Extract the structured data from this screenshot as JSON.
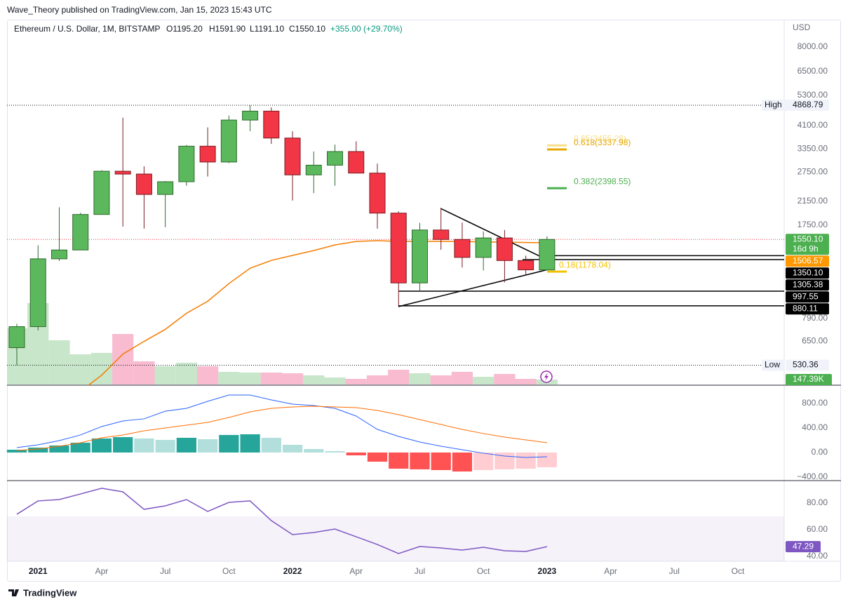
{
  "header": "Wave_Theory published on TradingView.com, Jan 15, 2023 15:43 UTC",
  "footer": "TradingView",
  "chart_data": {
    "type": "candlestick",
    "legend": {
      "symbol": "Ethereum / U.S. Dollar, 1M, BITSTAMP",
      "open": "O1195.20",
      "high": "H1591.90",
      "low": "L1191.10",
      "close": "C1550.10",
      "change": "+355.00 (+29.70%)"
    },
    "currency": "USD",
    "x": [
      "2020-12",
      "2021-01",
      "2021-02",
      "2021-03",
      "2021-04",
      "2021-05",
      "2021-06",
      "2021-07",
      "2021-08",
      "2021-09",
      "2021-10",
      "2021-11",
      "2021-12",
      "2022-01",
      "2022-02",
      "2022-03",
      "2022-04",
      "2022-05",
      "2022-06",
      "2022-07",
      "2022-08",
      "2022-09",
      "2022-10",
      "2022-11",
      "2022-12",
      "2023-01"
    ],
    "xlim": [
      "2020-12",
      "2023-10"
    ],
    "xticks": [
      {
        "value": "2021-01",
        "label": "2021"
      },
      {
        "value": "2021-04",
        "label": "Apr"
      },
      {
        "value": "2021-07",
        "label": "Jul"
      },
      {
        "value": "2021-10",
        "label": "Oct"
      },
      {
        "value": "2022-01",
        "label": "2022"
      },
      {
        "value": "2022-04",
        "label": "Apr"
      },
      {
        "value": "2022-07",
        "label": "Jul"
      },
      {
        "value": "2022-10",
        "label": "Oct"
      },
      {
        "value": "2023-01",
        "label": "2023"
      },
      {
        "value": "2023-04",
        "label": "Apr"
      },
      {
        "value": "2023-07",
        "label": "Jul"
      },
      {
        "value": "2023-10",
        "label": "Oct"
      }
    ],
    "candles": {
      "up_color": "#5cb85c",
      "down_color": "#f23645",
      "open": [
        616,
        737,
        1314,
        1417,
        1918,
        2773,
        2707,
        2275,
        2536,
        3433,
        3000,
        4290,
        4630,
        3680,
        2688,
        2920,
        3280,
        2729,
        1940,
        1070,
        1680,
        1550,
        1330,
        1570,
        1295,
        1195.2
      ],
      "high": [
        755,
        1475,
        2040,
        1945,
        2796,
        4380,
        2890,
        2550,
        3470,
        4030,
        4460,
        4868.79,
        4780,
        3900,
        3280,
        3480,
        3580,
        2960,
        1970,
        1785,
        2030,
        1790,
        1660,
        1680,
        1350,
        1591.9
      ],
      "low": [
        530.36,
        714,
        1290,
        1440,
        1920,
        1730,
        1700,
        1720,
        2450,
        2650,
        2970,
        3900,
        3500,
        2160,
        2300,
        2450,
        2790,
        1700,
        880.11,
        997.55,
        1420,
        1220,
        1190,
        1075,
        1150,
        1191.1
      ],
      "close": [
        737,
        1314,
        1417,
        1918,
        2773,
        2707,
        2275,
        2536,
        3433,
        3000,
        4290,
        4630,
        3680,
        2688,
        2920,
        3280,
        2729,
        1940,
        1070,
        1680,
        1550,
        1330,
        1570,
        1295,
        1196,
        1550.1
      ]
    },
    "ma": {
      "color": "#f57c00",
      "values": [
        null,
        null,
        null,
        425,
        487,
        583,
        650,
        720,
        826,
        915,
        1064,
        1213,
        1296,
        1353,
        1410,
        1479,
        1524,
        1534,
        1524,
        1524,
        1524,
        1524,
        1518,
        1515,
        1510,
        1506.57
      ]
    },
    "volume": {
      "up_color": "#c8e6c9",
      "down_color": "#f8bbd0",
      "ylim": [
        0,
        10920
      ],
      "values": [
        1680,
        2436,
        1323,
        903,
        945,
        1512,
        693,
        546,
        651,
        546,
        378,
        357,
        357,
        336,
        273,
        210,
        168,
        273,
        441,
        336,
        273,
        378,
        231,
        315,
        168,
        147.39
      ],
      "last_label": "147.39K"
    },
    "log_scale": true,
    "ylim": [
      450,
      10100
    ],
    "yticks": [
      {
        "value": 8000,
        "label": "8000.00"
      },
      {
        "value": 6500,
        "label": "6500.00"
      },
      {
        "value": 5300,
        "label": "5300.00"
      },
      {
        "value": 4100,
        "label": "4100.00"
      },
      {
        "value": 3350,
        "label": "3350.00"
      },
      {
        "value": 2750,
        "label": "2750.00"
      },
      {
        "value": 2150,
        "label": "2150.00"
      },
      {
        "value": 1750,
        "label": "1750.00"
      },
      {
        "value": 790,
        "label": "790.00"
      },
      {
        "value": 650,
        "label": "650.00"
      }
    ],
    "high_mark": {
      "name": "High",
      "value": 4868.79,
      "label": "4868.79"
    },
    "low_mark": {
      "name": "Low",
      "value": 530.36,
      "label": "530.36"
    },
    "fibs": [
      {
        "value": 3455.28,
        "label": "0.65(3455.28)",
        "color": "#f7e08a"
      },
      {
        "value": 3337.98,
        "label": "0.618(3337.98)",
        "color": "#e6a700"
      },
      {
        "value": 2398.55,
        "label": "0.382(2398.55)",
        "color": "#4caf50"
      },
      {
        "value": 1178.04,
        "label": "0.18(1178.04)",
        "color": "#f2c200"
      }
    ],
    "tags": [
      {
        "value": 1550.1,
        "label": "1550.10",
        "sub": "16d 9h",
        "color": "#4caf50"
      },
      {
        "value": 1506.57,
        "label": "1506.57",
        "color": "#ff9800"
      },
      {
        "value": 1350.1,
        "label": "1350.10",
        "color": "#000000"
      },
      {
        "value": 1305.38,
        "label": "1305.38",
        "color": "#000000"
      },
      {
        "value": 997.55,
        "label": "997.55",
        "color": "#000000"
      },
      {
        "value": 880.11,
        "label": "880.11",
        "color": "#000000"
      }
    ],
    "macd": {
      "ylim": [
        -446,
        1017
      ],
      "yticks": [
        {
          "value": 800,
          "label": "800.00"
        },
        {
          "value": 400,
          "label": "400.00"
        },
        {
          "value": 0,
          "label": "0.00"
        },
        {
          "value": -400,
          "label": "−400.00"
        }
      ],
      "histogram": [
        46,
        80,
        114,
        160,
        229,
        251,
        229,
        206,
        240,
        217,
        286,
        297,
        240,
        126,
        57,
        23,
        -46,
        -149,
        -263,
        -274,
        -286,
        -309,
        -286,
        -274,
        -263,
        -240
      ],
      "colors": {
        "up_rising": "#26a69a",
        "up_falling": "#b2dfdb",
        "down_falling": "#ff5252",
        "down_rising": "#ffcdd2"
      },
      "macd": {
        "color": "#2962ff",
        "values": [
          80,
          126,
          194,
          286,
          423,
          514,
          549,
          674,
          720,
          834,
          937,
          937,
          857,
          789,
          766,
          720,
          594,
          377,
          263,
          171,
          103,
          46,
          -11,
          -57,
          -80,
          -69
        ]
      },
      "signal": {
        "color": "#ff6d00",
        "values": [
          34,
          57,
          103,
          160,
          240,
          286,
          354,
          400,
          446,
          491,
          571,
          663,
          720,
          743,
          754,
          743,
          731,
          686,
          617,
          537,
          457,
          377,
          309,
          251,
          206,
          160
        ]
      }
    },
    "rsi": {
      "type": "line",
      "color": "#7e57c2",
      "ylim": [
        36.3,
        96.3
      ],
      "yticks": [
        {
          "value": 80,
          "label": "80.00"
        },
        {
          "value": 60,
          "label": "60.00"
        },
        {
          "value": 40,
          "label": "40.00"
        }
      ],
      "band": [
        30,
        70
      ],
      "values": [
        71.6,
        81.6,
        82.6,
        86.8,
        91.1,
        88.4,
        75.3,
        77.9,
        82.6,
        73.7,
        80.5,
        81.6,
        66.8,
        56.3,
        57.9,
        60.5,
        54.7,
        48.9,
        42.1,
        47.4,
        46.3,
        44.7,
        46.8,
        44.2,
        43.7,
        47.29
      ]
    }
  }
}
